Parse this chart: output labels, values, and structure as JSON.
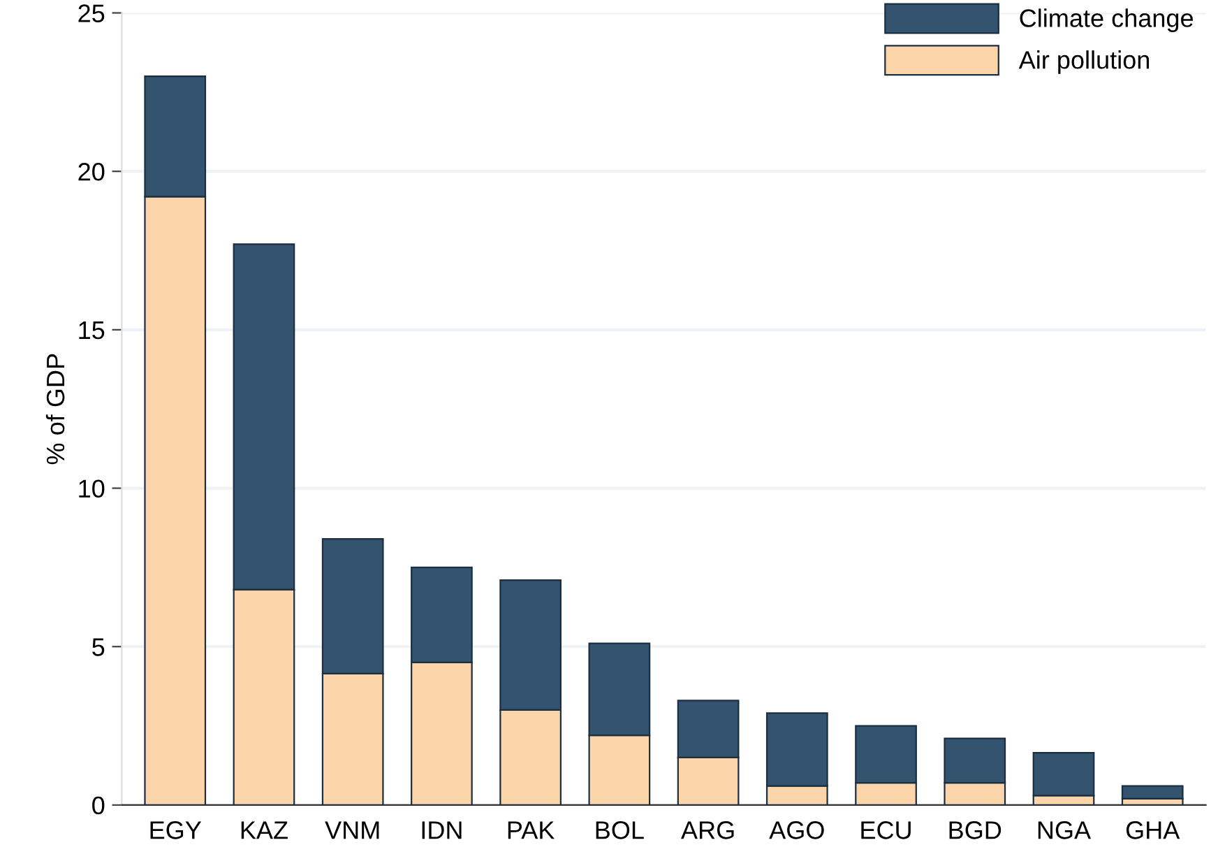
{
  "chart_data": {
    "type": "bar",
    "stacked": true,
    "ylabel": "% of GDP",
    "categories": [
      "EGY",
      "KAZ",
      "VNM",
      "IDN",
      "PAK",
      "BOL",
      "ARG",
      "AGO",
      "ECU",
      "BGD",
      "NGA",
      "GHA"
    ],
    "series": [
      {
        "name": "Air pollution",
        "color": "#fcd5aa",
        "values": [
          19.2,
          6.8,
          4.15,
          4.5,
          3.0,
          2.2,
          1.5,
          0.6,
          0.7,
          0.7,
          0.3,
          0.2
        ]
      },
      {
        "name": "Climate change",
        "color": "#33536e",
        "values": [
          3.8,
          10.9,
          4.25,
          3.0,
          4.1,
          2.9,
          1.8,
          2.3,
          1.8,
          1.4,
          1.35,
          0.4
        ]
      }
    ],
    "ylim": [
      0,
      25
    ],
    "yticks": [
      0,
      5,
      10,
      15,
      20,
      25
    ],
    "grid": "y",
    "legend": "top right"
  }
}
